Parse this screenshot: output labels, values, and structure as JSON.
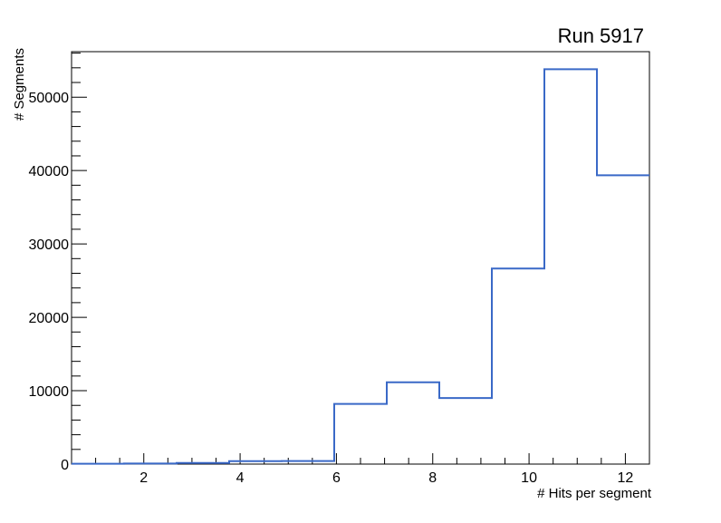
{
  "window": {
    "background_color": "#ffffff"
  },
  "chart_data": {
    "type": "bar",
    "subtype": "step-histogram",
    "title": "Run 5917",
    "xlabel": "# Hits per segment",
    "ylabel": "# Segments",
    "xlim": [
      0.5,
      12.5
    ],
    "ylim": [
      0,
      56200
    ],
    "bin_edges": [
      0.5,
      1.591,
      2.682,
      3.773,
      4.864,
      5.955,
      7.045,
      8.136,
      9.227,
      10.318,
      11.409,
      12.5
    ],
    "values": [
      50,
      80,
      150,
      400,
      420,
      8200,
      11150,
      9000,
      26650,
      53800,
      39350
    ],
    "x_major_ticks": [
      2,
      4,
      6,
      8,
      10,
      12
    ],
    "x_minor_step": 0.5,
    "y_major_ticks": [
      0,
      10000,
      20000,
      30000,
      40000,
      50000
    ],
    "y_minor_step": 2000,
    "grid": false,
    "legend": false,
    "line_color": "#3a69c7",
    "line_width": 2,
    "frame_color": "#000000",
    "text_color": "#000000"
  }
}
